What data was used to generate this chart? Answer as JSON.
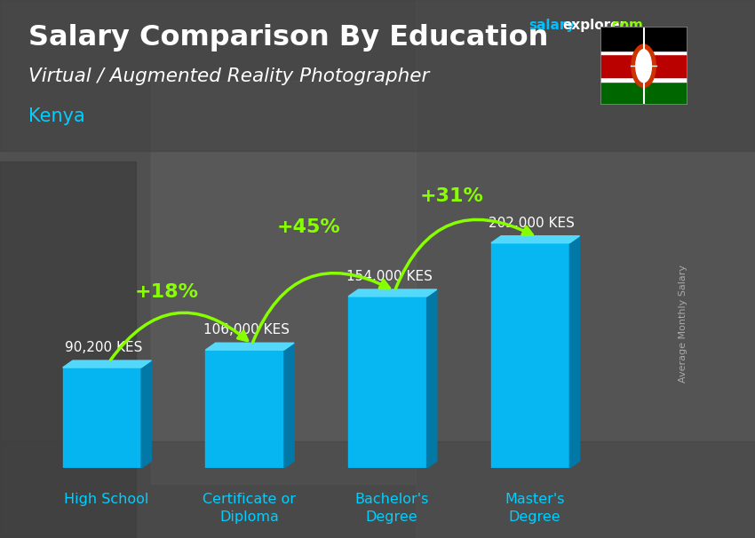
{
  "title": "Salary Comparison By Education",
  "subtitle": "Virtual / Augmented Reality Photographer",
  "country": "Kenya",
  "ylabel": "Average Monthly Salary",
  "categories": [
    "High School",
    "Certificate or\nDiploma",
    "Bachelor's\nDegree",
    "Master's\nDegree"
  ],
  "values": [
    90200,
    106000,
    154000,
    202000
  ],
  "value_labels": [
    "90,200 KES",
    "106,000 KES",
    "154,000 KES",
    "202,000 KES"
  ],
  "pct_changes": [
    "+18%",
    "+45%",
    "+31%"
  ],
  "bar_color": "#00BFFF",
  "bar_color_dark": "#007AAA",
  "bar_color_top": "#55DDFF",
  "pct_color": "#88FF00",
  "title_color": "#FFFFFF",
  "subtitle_color": "#FFFFFF",
  "country_color": "#00CFFF",
  "value_label_color": "#FFFFFF",
  "xlabel_color": "#00CFFF",
  "bg_color": "#555555",
  "salary_color": "#00BFFF",
  "explorer_color": "#FFFFFF",
  "com_color": "#88FF00",
  "ylabel_color": "#AAAAAA",
  "figsize": [
    8.5,
    6.06
  ],
  "dpi": 100
}
